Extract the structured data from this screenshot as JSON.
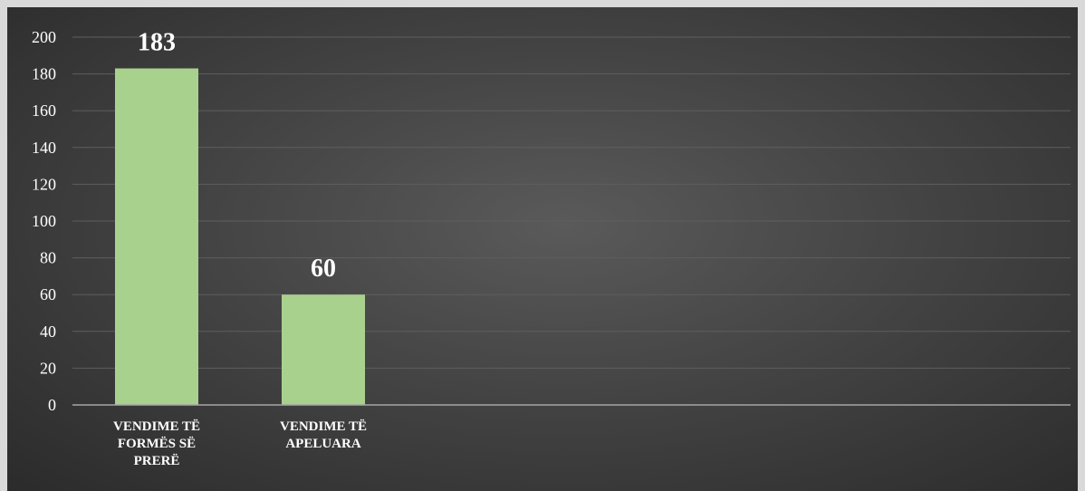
{
  "chart_data": {
    "type": "bar",
    "categories": [
      [
        "VENDIME TË",
        "FORMËS SË",
        "PRERË"
      ],
      [
        "VENDIME TË",
        "APELUARA"
      ]
    ],
    "values": [
      183,
      60
    ],
    "data_labels": [
      "183",
      "60"
    ],
    "ylim": [
      0,
      200
    ],
    "yticks": [
      0,
      20,
      40,
      60,
      80,
      100,
      120,
      140,
      160,
      180,
      200
    ],
    "title": "",
    "xlabel": "",
    "ylabel": "",
    "grid": true,
    "legend": "none",
    "colors": {
      "bar": "#a9d18e",
      "grid": "#5e5e5e",
      "axis": "#a6a6a6",
      "text": "#ffffff"
    }
  }
}
